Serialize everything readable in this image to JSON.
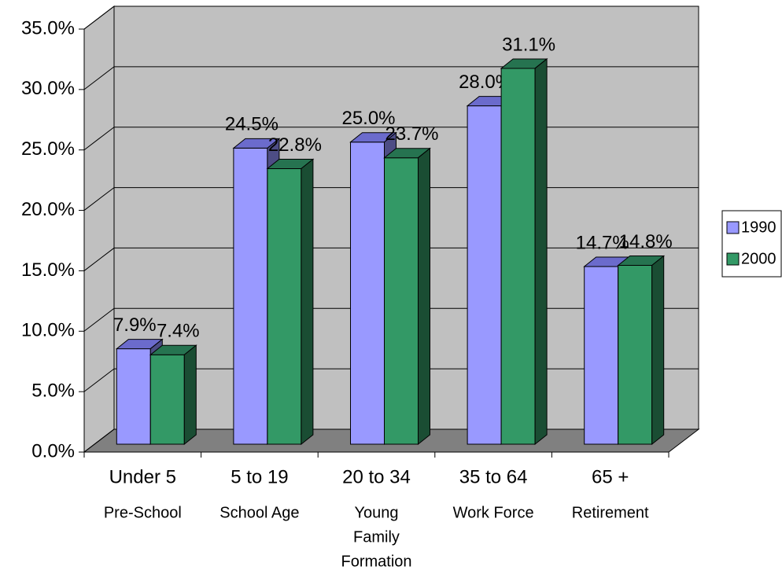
{
  "chart_data": {
    "type": "bar3d",
    "categories": [
      "Under 5",
      "5 to 19",
      "20 to 34",
      "35 to 64",
      "65 +"
    ],
    "category_subtitles": [
      [
        "Pre-School"
      ],
      [
        "School Age"
      ],
      [
        "Young",
        "Family",
        "Formation"
      ],
      [
        "Work Force"
      ],
      [
        "Retirement"
      ]
    ],
    "series": [
      {
        "name": "1990",
        "color": "#9999ff",
        "top_color": "#6b6bcc",
        "side_color": "#4d4d85",
        "values": [
          7.9,
          24.5,
          25.0,
          28.0,
          14.7
        ],
        "value_labels": [
          "7.9%",
          "24.5%",
          "25.0%",
          "28.0%",
          "14.7%"
        ]
      },
      {
        "name": "2000",
        "color": "#339966",
        "top_color": "#267350",
        "side_color": "#1a4d33",
        "values": [
          7.4,
          22.8,
          23.7,
          31.1,
          14.8
        ],
        "value_labels": [
          "7.4%",
          "22.8%",
          "23.7%",
          "31.1%",
          "14.8%"
        ]
      }
    ],
    "ylim": [
      0,
      35
    ],
    "yticks": [
      {
        "value": 0,
        "label": "0.0%"
      },
      {
        "value": 5,
        "label": "5.0%"
      },
      {
        "value": 10,
        "label": "10.0%"
      },
      {
        "value": 15,
        "label": "15.0%"
      },
      {
        "value": 20,
        "label": "20.0%"
      },
      {
        "value": 25,
        "label": "25.0%"
      },
      {
        "value": 30,
        "label": "30.0%"
      },
      {
        "value": 35,
        "label": "35.0%"
      }
    ],
    "grid": true,
    "wall_color": "#c0c0c0",
    "floor_color": "#808080",
    "legend": "right"
  }
}
